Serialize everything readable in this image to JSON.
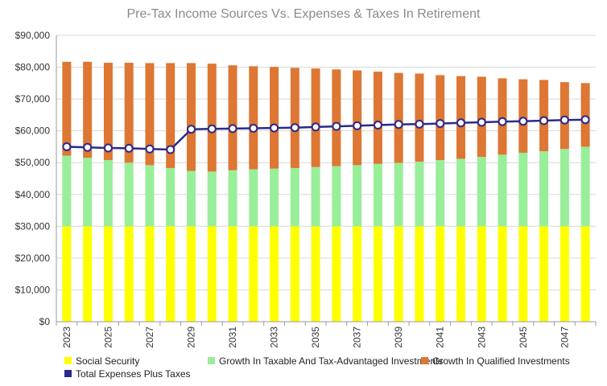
{
  "chart_data": {
    "type": "bar",
    "title": "Pre-Tax Income Sources Vs. Expenses & Taxes In Retirement",
    "xlabel": "",
    "ylabel": "",
    "ylim": [
      0,
      90000
    ],
    "y_ticks": [
      0,
      10000,
      20000,
      30000,
      40000,
      50000,
      60000,
      70000,
      80000,
      90000
    ],
    "y_tick_labels": [
      "$0",
      "$10,000",
      "$20,000",
      "$30,000",
      "$40,000",
      "$50,000",
      "$60,000",
      "$70,000",
      "$80,000",
      "$90,000"
    ],
    "grid": true,
    "stacked": true,
    "legend_position": "bottom",
    "categories": [
      "2023",
      "2024",
      "2025",
      "2026",
      "2027",
      "2028",
      "2029",
      "2030",
      "2031",
      "2032",
      "2033",
      "2034",
      "2035",
      "2036",
      "2037",
      "2038",
      "2039",
      "2040",
      "2041",
      "2042",
      "2043",
      "2044",
      "2045",
      "2046",
      "2047",
      "2048"
    ],
    "x_tick_labels": [
      "2023",
      "",
      "2025",
      "",
      "2027",
      "",
      "2029",
      "",
      "2031",
      "",
      "2033",
      "",
      "2035",
      "",
      "2037",
      "",
      "2039",
      "",
      "2041",
      "",
      "2043",
      "",
      "2045",
      "",
      "2047",
      ""
    ],
    "series": [
      {
        "name": "Social Security",
        "color": "#ffff00",
        "values": [
          30000,
          30000,
          30000,
          30000,
          30000,
          30000,
          30000,
          30000,
          30000,
          30000,
          30000,
          30000,
          30000,
          30000,
          30000,
          30000,
          30000,
          30000,
          30000,
          30000,
          30000,
          30000,
          30000,
          30000,
          30000,
          30000
        ]
      },
      {
        "name": "Growth In Taxable And Tax-Advantaged Investments",
        "color": "#99ee99",
        "values": [
          22200,
          21500,
          20800,
          20000,
          19200,
          18300,
          17400,
          17200,
          17600,
          17900,
          18100,
          18300,
          18600,
          18900,
          19200,
          19600,
          19900,
          20300,
          20800,
          21200,
          21800,
          22500,
          23100,
          23600,
          24300,
          25000
        ]
      },
      {
        "name": "Growth In Qualified Investments",
        "color": "#dd7733",
        "values": [
          29500,
          30200,
          30600,
          31400,
          32100,
          33000,
          33900,
          33900,
          33000,
          32400,
          32000,
          31500,
          31000,
          30400,
          29800,
          29000,
          28300,
          27700,
          26700,
          26000,
          25200,
          24000,
          23100,
          22400,
          21000,
          20000
        ]
      },
      {
        "name": "Total Expenses Plus Taxes",
        "color": "#2a2a8a",
        "type": "line",
        "values": [
          55000,
          54800,
          54600,
          54500,
          54300,
          54100,
          60500,
          60600,
          60700,
          60800,
          60900,
          61000,
          61200,
          61400,
          61600,
          61800,
          62000,
          62100,
          62300,
          62500,
          62700,
          62900,
          63000,
          63200,
          63400,
          63500
        ]
      }
    ]
  }
}
